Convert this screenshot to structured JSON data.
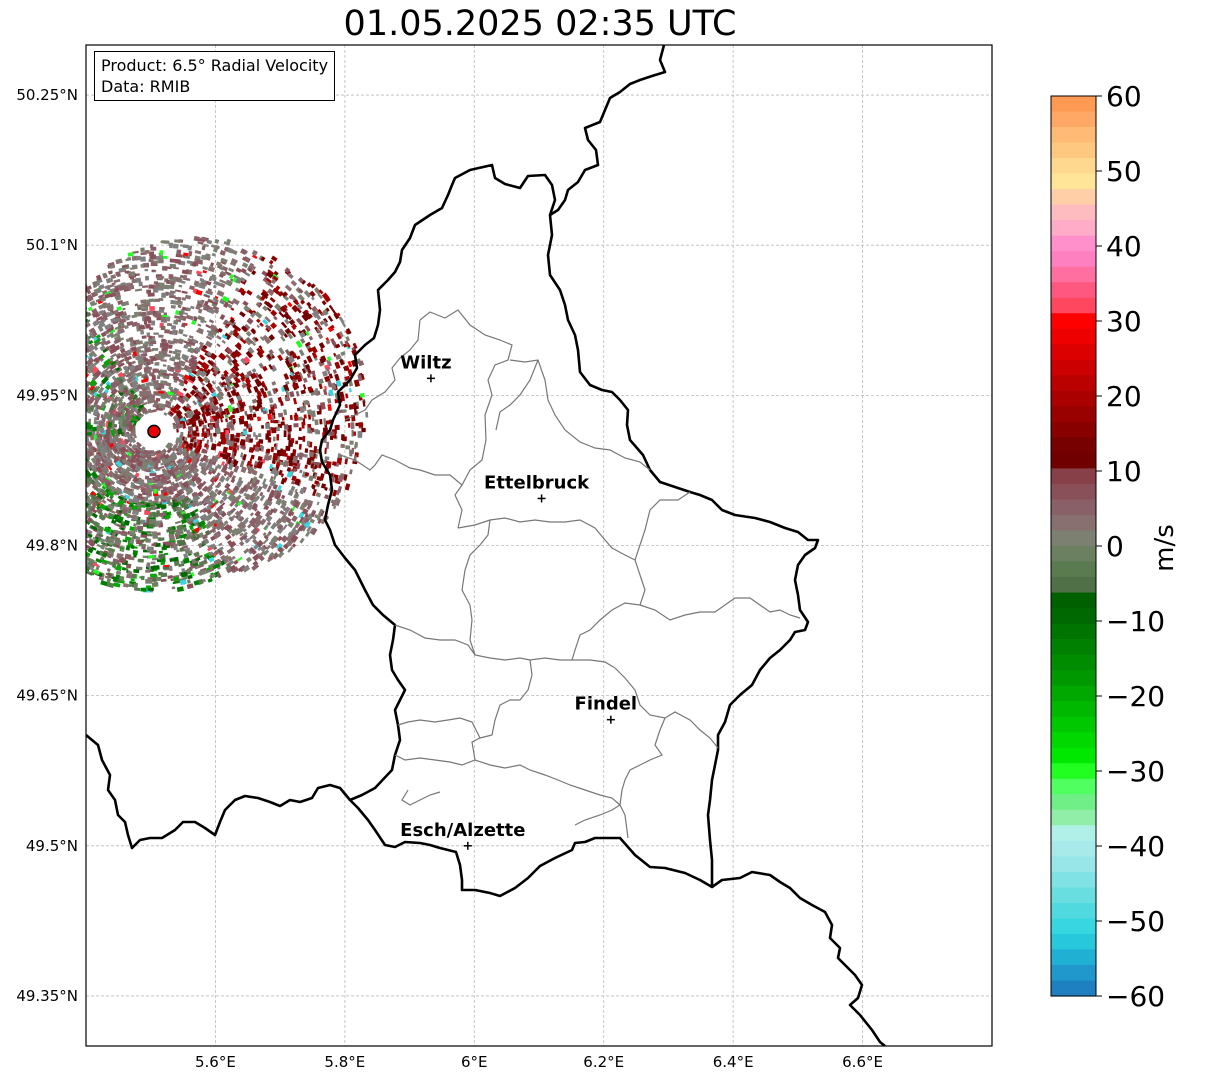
{
  "title": "01.05.2025 02:35 UTC",
  "info": {
    "product": "Product: 6.5° Radial Velocity",
    "source": "Data: RMIB"
  },
  "map": {
    "lon_range": [
      5.4,
      6.8
    ],
    "lat_range": [
      49.3,
      50.3
    ],
    "lon_ticks": [
      {
        "value": 5.6,
        "label": "5.6°E"
      },
      {
        "value": 5.8,
        "label": "5.8°E"
      },
      {
        "value": 6.0,
        "label": "6°E"
      },
      {
        "value": 6.2,
        "label": "6.2°E"
      },
      {
        "value": 6.4,
        "label": "6.4°E"
      },
      {
        "value": 6.6,
        "label": "6.6°E"
      }
    ],
    "lat_ticks": [
      {
        "value": 50.25,
        "label": "50.25°N"
      },
      {
        "value": 50.1,
        "label": "50.1°N"
      },
      {
        "value": 49.95,
        "label": "49.95°N"
      },
      {
        "value": 49.8,
        "label": "49.8°N"
      },
      {
        "value": 49.65,
        "label": "49.65°N"
      },
      {
        "value": 49.5,
        "label": "49.5°N"
      },
      {
        "value": 49.35,
        "label": "49.35°N"
      }
    ],
    "grid": true,
    "radar_site": {
      "lon": 5.505,
      "lat": 49.914
    },
    "cities": [
      {
        "name": "Wiltz",
        "lon": 5.933,
        "lat": 49.967
      },
      {
        "name": "Ettelbruck",
        "lon": 6.104,
        "lat": 49.847
      },
      {
        "name": "Findel",
        "lon": 6.211,
        "lat": 49.626
      },
      {
        "name": "Esch/Alzette",
        "lon": 5.99,
        "lat": 49.5
      }
    ]
  },
  "colorbar": {
    "label": "m/s",
    "min": -60,
    "max": 60,
    "ticks": [
      {
        "value": 60,
        "label": "60"
      },
      {
        "value": 50,
        "label": "50"
      },
      {
        "value": 40,
        "label": "40"
      },
      {
        "value": 30,
        "label": "30"
      },
      {
        "value": 20,
        "label": "20"
      },
      {
        "value": 10,
        "label": "10"
      },
      {
        "value": 0,
        "label": "0"
      },
      {
        "value": -10,
        "label": "−10"
      },
      {
        "value": -20,
        "label": "−20"
      },
      {
        "value": -30,
        "label": "−30"
      },
      {
        "value": -40,
        "label": "−40"
      },
      {
        "value": -50,
        "label": "−50"
      },
      {
        "value": -60,
        "label": "−60"
      }
    ],
    "colors": [
      "#ff9a55",
      "#ffa865",
      "#ffbb75",
      "#ffc880",
      "#ffd890",
      "#ffe598",
      "#ffd0a8",
      "#ffbcc0",
      "#ffacc8",
      "#ff90cc",
      "#ff80c0",
      "#ff70a0",
      "#ff5880",
      "#ff4860",
      "#ff0000",
      "#ee0000",
      "#dd0000",
      "#cc0000",
      "#bb0000",
      "#aa0000",
      "#990000",
      "#880000",
      "#770000",
      "#700000",
      "#884048",
      "#8a505a",
      "#8a6068",
      "#887070",
      "#7c8070",
      "#6a8060",
      "#5a7a50",
      "#507048",
      "#006000",
      "#006800",
      "#007400",
      "#008000",
      "#008c00",
      "#009800",
      "#00a800",
      "#00b800",
      "#00c800",
      "#00d800",
      "#00e800",
      "#20ff20",
      "#50ff60",
      "#70ee88",
      "#90eea8",
      "#b0f0e8",
      "#a8eaea",
      "#98e6e8",
      "#80e2e4",
      "#68dee0",
      "#50dae0",
      "#38d6e0",
      "#28c8dc",
      "#20b0d4",
      "#2098cc",
      "#1e80c0"
    ]
  }
}
